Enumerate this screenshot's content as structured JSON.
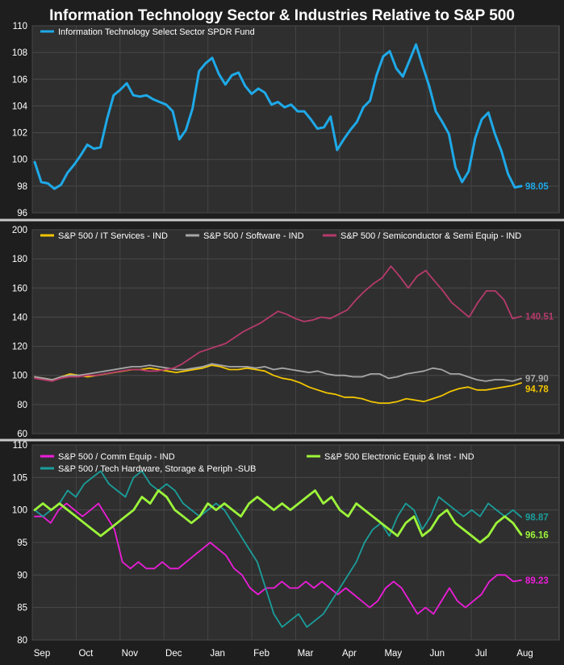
{
  "chart_data": [
    {
      "type": "line",
      "title": "Information Technology Sector & Industries Relative to S&P 500",
      "x_axis": {
        "ticks": [
          "Sep",
          "Oct",
          "Nov",
          "Dec",
          "Jan",
          "Feb",
          "Mar",
          "Apr",
          "May",
          "Jun",
          "Jul",
          "Aug"
        ]
      },
      "ylim": [
        96,
        110
      ],
      "yticks": [
        96,
        98,
        100,
        102,
        104,
        106,
        108,
        110
      ],
      "grid": true,
      "legend": "top-left",
      "series": [
        {
          "name": "Information Technology Select Sector SPDR Fund",
          "color": "#1ea9e8",
          "stroke_width": 3,
          "end_label": "98.05",
          "values": [
            99.8,
            98.3,
            98.2,
            97.8,
            98.1,
            99.0,
            99.6,
            100.3,
            101.1,
            100.8,
            100.9,
            103.0,
            104.8,
            105.2,
            105.7,
            104.8,
            104.7,
            104.8,
            104.5,
            104.3,
            104.1,
            103.6,
            101.5,
            102.2,
            103.8,
            106.6,
            107.2,
            107.6,
            106.4,
            105.6,
            106.3,
            106.5,
            105.5,
            104.9,
            105.3,
            105.0,
            104.1,
            104.3,
            103.9,
            104.1,
            103.6,
            103.6,
            103.0,
            102.3,
            102.4,
            103.2,
            100.7,
            101.5,
            102.2,
            102.8,
            103.9,
            104.4,
            106.3,
            107.7,
            108.1,
            106.8,
            106.2,
            107.4,
            108.6,
            107.0,
            105.5,
            103.6,
            102.8,
            101.9,
            99.4,
            98.3,
            99.1,
            101.6,
            103.0,
            103.5,
            101.9,
            100.6,
            98.9,
            97.9,
            98.0
          ]
        }
      ]
    },
    {
      "type": "line",
      "ylim": [
        60,
        200
      ],
      "yticks": [
        60,
        80,
        100,
        120,
        140,
        160,
        180,
        200
      ],
      "grid": true,
      "legend": "top-left",
      "series": [
        {
          "name": "S&P 500 / IT Services - IND",
          "color": "#f2c500",
          "stroke_width": 1.8,
          "end_label": "94.78",
          "values": [
            99,
            98,
            97,
            99,
            101,
            100,
            99,
            100,
            101,
            102,
            103,
            104,
            104,
            105,
            104,
            103,
            102,
            103,
            104,
            105,
            107,
            106,
            104,
            104,
            105,
            104,
            103,
            100,
            98,
            97,
            95,
            92,
            90,
            88,
            87,
            85,
            85,
            84,
            82,
            81,
            81,
            82,
            84,
            83,
            82,
            84,
            86,
            89,
            91,
            92,
            90,
            90,
            91,
            92,
            93,
            94.8
          ]
        },
        {
          "name": "S&P 500 / Software - IND",
          "color": "#a6a6a6",
          "stroke_width": 1.8,
          "end_label": "97.90",
          "values": [
            99,
            98,
            97,
            99,
            100,
            100,
            101,
            102,
            103,
            104,
            105,
            106,
            106,
            107,
            106,
            105,
            104,
            104,
            105,
            106,
            108,
            107,
            106,
            106,
            106,
            105,
            106,
            104,
            105,
            104,
            103,
            102,
            103,
            101,
            100,
            100,
            99,
            99,
            101,
            101,
            98,
            99,
            101,
            102,
            103,
            105,
            104,
            101,
            101,
            99,
            97,
            96,
            97,
            97,
            96,
            97.9
          ]
        },
        {
          "name": "S&P 500 / Semiconductor & Semi Equip - IND",
          "color": "#b63a6b",
          "stroke_width": 1.8,
          "end_label": "140.51",
          "values": [
            98,
            97,
            96,
            98,
            99,
            99,
            100,
            100,
            101,
            102,
            103,
            104,
            104,
            103,
            103,
            104,
            105,
            108,
            112,
            116,
            118,
            120,
            122,
            126,
            130,
            133,
            136,
            140,
            144,
            142,
            139,
            137,
            138,
            140,
            139,
            142,
            145,
            152,
            158,
            163,
            167,
            175,
            168,
            160,
            168,
            172,
            165,
            158,
            150,
            145,
            140,
            150,
            158,
            158,
            152,
            139,
            140.5
          ]
        }
      ]
    },
    {
      "type": "line",
      "x_axis": {
        "ticks": [
          "Sep",
          "Oct",
          "Nov",
          "Dec",
          "Jan",
          "Feb",
          "Mar",
          "Apr",
          "May",
          "Jun",
          "Jul",
          "Aug"
        ]
      },
      "ylim": [
        80,
        110
      ],
      "yticks": [
        80,
        85,
        90,
        95,
        100,
        105,
        110
      ],
      "grid": true,
      "legend": "top",
      "series": [
        {
          "name": "S&P 500 / Comm Equip - IND",
          "color": "#ec1dd9",
          "stroke_width": 1.8,
          "end_label": "89.23",
          "values": [
            99,
            99,
            98,
            100,
            101,
            100,
            99,
            100,
            101,
            99,
            97,
            92,
            91,
            92,
            91,
            91,
            92,
            91,
            91,
            92,
            93,
            94,
            95,
            94,
            93,
            91,
            90,
            88,
            87,
            88,
            88,
            89,
            88,
            88,
            89,
            88,
            89,
            88,
            87,
            88,
            87,
            86,
            85,
            86,
            88,
            89,
            88,
            86,
            84,
            85,
            84,
            86,
            88,
            86,
            85,
            86,
            87,
            89,
            90,
            90,
            89,
            89.2
          ]
        },
        {
          "name": "S&P 500 / Tech Hardware, Storage & Periph -SUB",
          "color": "#1a9e9b",
          "stroke_width": 1.8,
          "end_label": "98.87",
          "values": [
            100,
            99,
            100,
            101,
            103,
            102,
            104,
            105,
            106,
            104,
            103,
            102,
            105,
            106,
            104,
            103,
            104,
            103,
            101,
            100,
            99,
            100,
            101,
            100,
            98,
            96,
            94,
            92,
            88,
            84,
            82,
            83,
            84,
            82,
            83,
            84,
            86,
            88,
            90,
            92,
            95,
            97,
            98,
            96,
            99,
            101,
            100,
            97,
            99,
            102,
            101,
            100,
            99,
            100,
            99,
            101,
            100,
            99,
            100,
            98.9
          ]
        },
        {
          "name": "S&P 500 Electronic Equip & Inst - IND",
          "color": "#9cf53a",
          "stroke_width": 2.8,
          "end_label": "96.16",
          "values": [
            100,
            101,
            100,
            101,
            100,
            99,
            98,
            97,
            96,
            97,
            98,
            99,
            100,
            102,
            101,
            103,
            102,
            100,
            99,
            98,
            99,
            101,
            100,
            101,
            100,
            99,
            101,
            102,
            101,
            100,
            101,
            100,
            101,
            102,
            103,
            101,
            102,
            100,
            99,
            101,
            100,
            99,
            98,
            97,
            96,
            98,
            99,
            96,
            97,
            99,
            100,
            98,
            97,
            96,
            95,
            96,
            98,
            99,
            98,
            96.2
          ]
        }
      ]
    }
  ]
}
